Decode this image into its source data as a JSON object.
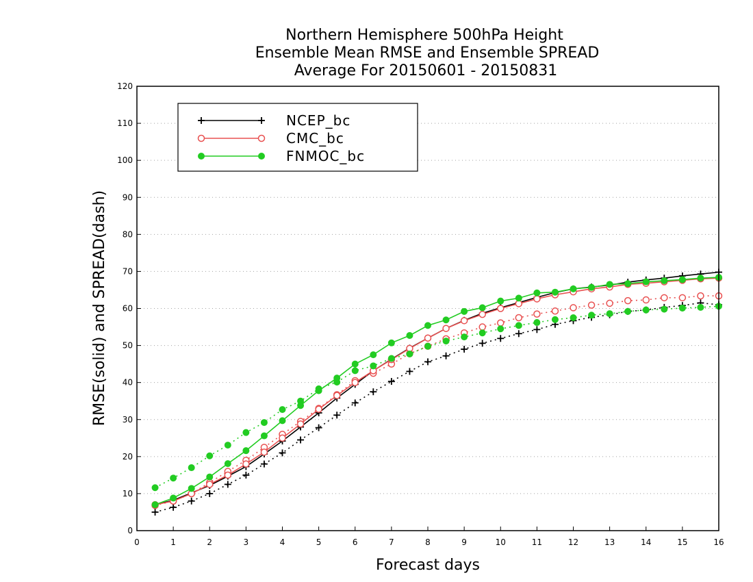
{
  "chart_data": {
    "type": "line",
    "title": [
      "Northern Hemisphere 500hPa Height",
      "Ensemble Mean RMSE and Ensemble SPREAD",
      "Average For 20150601 - 20150831"
    ],
    "xlabel": "Forecast days",
    "ylabel": "RMSE(solid) and SPREAD(dash)",
    "xlim": [
      0,
      16
    ],
    "ylim": [
      0,
      120
    ],
    "xticks": [
      0,
      1,
      2,
      3,
      4,
      5,
      6,
      7,
      8,
      9,
      10,
      11,
      12,
      13,
      14,
      15,
      16
    ],
    "yticks": [
      0,
      10,
      20,
      30,
      40,
      50,
      60,
      70,
      80,
      90,
      100,
      110,
      120
    ],
    "grid": "horizontal-dotted",
    "legend_position": "top-left",
    "x": [
      0.5,
      1,
      1.5,
      2,
      2.5,
      3,
      3.5,
      4,
      4.5,
      5,
      5.5,
      6,
      6.5,
      7,
      7.5,
      8,
      8.5,
      9,
      9.5,
      10,
      10.5,
      11,
      11.5,
      12,
      12.5,
      13,
      13.5,
      14,
      14.5,
      15,
      15.5,
      16
    ],
    "series": [
      {
        "name": "NCEP_bc",
        "color": "#000000",
        "marker": "plus",
        "rmse": [
          7,
          8.2,
          10.2,
          12.2,
          14.7,
          17.3,
          20.7,
          24.2,
          28,
          31.8,
          35.8,
          39.5,
          43.2,
          46.3,
          49.3,
          52,
          54.6,
          56.8,
          58.7,
          60.2,
          61.6,
          63,
          64.3,
          65.3,
          65.8,
          66.3,
          67.1,
          67.7,
          68.2,
          68.8,
          69.3,
          69.8
        ],
        "spread": [
          5,
          6.3,
          8,
          10,
          12.5,
          15,
          18,
          21,
          24.5,
          27.8,
          31.2,
          34.5,
          37.5,
          40.3,
          43,
          45.6,
          47.2,
          49,
          50.6,
          51.9,
          53.2,
          54.3,
          55.7,
          56.7,
          57.6,
          58.3,
          59.2,
          59.6,
          60.3,
          60.8,
          61.5,
          61
        ]
      },
      {
        "name": "CMC_bc",
        "color": "#e85050",
        "marker": "open-circle",
        "rmse": [
          7,
          8,
          10,
          12.5,
          15,
          18,
          21.2,
          25,
          28.8,
          32.8,
          36.5,
          40,
          43.2,
          46.2,
          49.2,
          52,
          54.6,
          56.7,
          58.4,
          60,
          61.3,
          62.6,
          63.7,
          64.5,
          65.3,
          65.8,
          66.5,
          66.8,
          67.2,
          67.6,
          68,
          68.2
        ],
        "spread": [
          6.8,
          8,
          10,
          13,
          16,
          19,
          22.5,
          26,
          29.5,
          33,
          36.7,
          40.5,
          42.5,
          45,
          47.8,
          49.8,
          51.8,
          53.4,
          55,
          56.1,
          57.5,
          58.5,
          59.3,
          60.2,
          60.9,
          61.4,
          62.1,
          62.3,
          62.9,
          62.9,
          63.4,
          63.4
        ]
      },
      {
        "name": "FNMOC_bc",
        "color": "#22cc22",
        "marker": "filled-circle",
        "rmse": [
          7,
          8.8,
          11.4,
          14.5,
          18.1,
          21.6,
          25.6,
          29.7,
          33.8,
          37.8,
          41.2,
          45,
          47.5,
          50.7,
          52.7,
          55.4,
          56.9,
          59.2,
          60.2,
          62,
          62.8,
          64.2,
          64.4,
          65.3,
          65.7,
          66.5,
          66.7,
          67.2,
          67.5,
          67.8,
          68.2,
          68.4
        ],
        "spread": [
          11.6,
          14.2,
          17,
          20.2,
          23.1,
          26.5,
          29.2,
          32.7,
          35,
          38.3,
          40.1,
          43.2,
          44.5,
          46.5,
          47.7,
          49.8,
          51.2,
          52.3,
          53.4,
          54.5,
          55.4,
          56.2,
          57,
          57.5,
          58.2,
          58.6,
          59.2,
          59.6,
          59.8,
          60.1,
          60.3,
          60.6
        ]
      }
    ]
  }
}
